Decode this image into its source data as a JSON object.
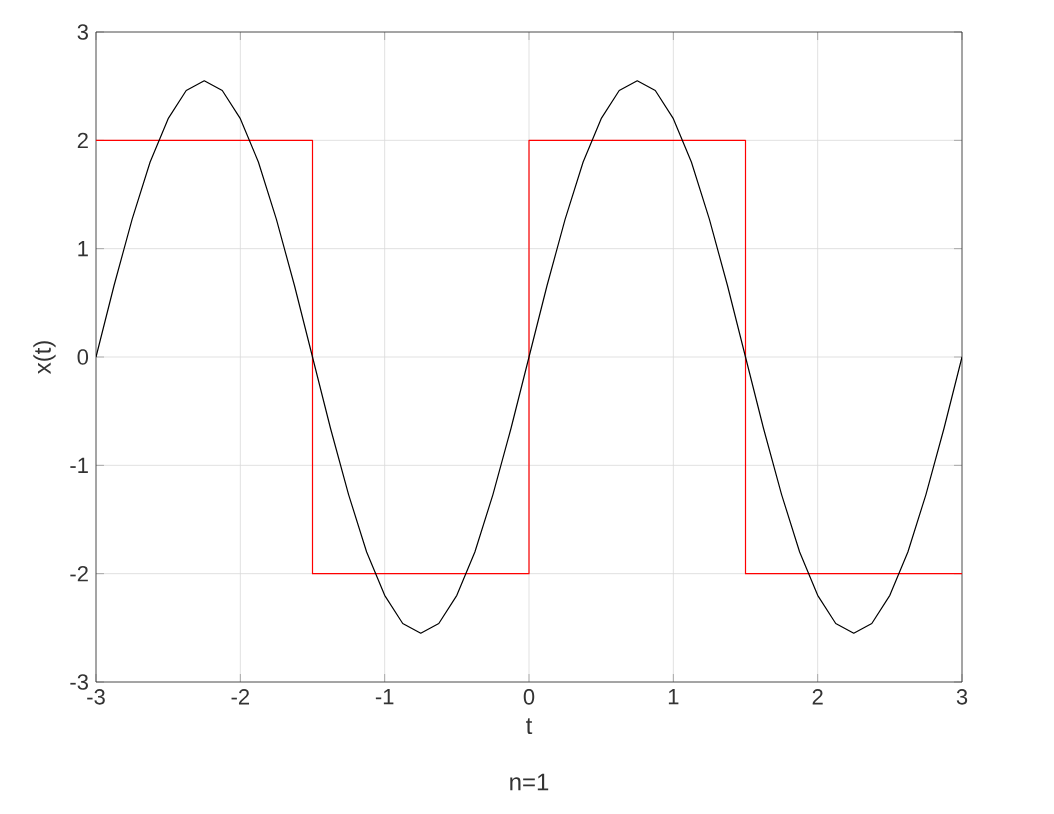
{
  "chart_data": {
    "type": "line",
    "xlabel": "t",
    "ylabel": "x(t)",
    "annotations": [
      "n=1"
    ],
    "xlim": [
      -3,
      3
    ],
    "ylim": [
      -3,
      3
    ],
    "xticks": [
      -3,
      -2,
      -1,
      0,
      1,
      2,
      3
    ],
    "yticks": [
      -3,
      -2,
      -1,
      0,
      1,
      2,
      3
    ],
    "grid": true,
    "series": [
      {
        "color": "#ff0000",
        "x": [
          -3,
          -1.5,
          -1.5,
          0,
          0,
          1.5,
          1.5,
          3
        ],
        "values": [
          2,
          2,
          -2,
          -2,
          2,
          2,
          -2,
          -2
        ]
      },
      {
        "color": "#000000",
        "x": [
          -3,
          -2.875,
          -2.75,
          -2.625,
          -2.5,
          -2.375,
          -2.25,
          -2.125,
          -2,
          -1.875,
          -1.75,
          -1.625,
          -1.5,
          -1.375,
          -1.25,
          -1.125,
          -1,
          -0.875,
          -0.75,
          -0.625,
          -0.5,
          -0.375,
          -0.25,
          -0.125,
          0,
          0.125,
          0.25,
          0.375,
          0.5,
          0.625,
          0.75,
          0.875,
          1,
          1.125,
          1.25,
          1.375,
          1.5,
          1.625,
          1.75,
          1.875,
          2,
          2.125,
          2.25,
          2.375,
          2.5,
          2.625,
          2.75,
          2.875,
          3
        ],
        "values": [
          0,
          0.66,
          1.27,
          1.8,
          2.2,
          2.46,
          2.55,
          2.46,
          2.2,
          1.8,
          1.27,
          0.66,
          0,
          -0.66,
          -1.27,
          -1.8,
          -2.2,
          -2.46,
          -2.55,
          -2.46,
          -2.2,
          -1.8,
          -1.27,
          -0.66,
          0,
          0.66,
          1.27,
          1.8,
          2.2,
          2.46,
          2.55,
          2.46,
          2.2,
          1.8,
          1.27,
          0.66,
          0,
          -0.66,
          -1.27,
          -1.8,
          -2.2,
          -2.46,
          -2.55,
          -2.46,
          -2.2,
          -1.8,
          -1.27,
          -0.66,
          0
        ]
      }
    ]
  }
}
